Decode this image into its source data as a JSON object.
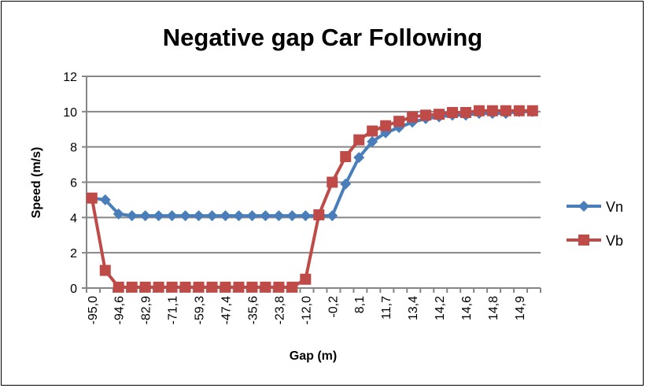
{
  "chart_data": {
    "type": "line",
    "title": "Negative gap Car Following",
    "xlabel": "Gap (m)",
    "ylabel": "Speed (m/s)",
    "ylim": [
      0,
      12
    ],
    "yticks": [
      0,
      2,
      4,
      6,
      8,
      10,
      12
    ],
    "grid": true,
    "legend_position": "right",
    "categories": [
      "-95,0",
      "",
      "-94,6",
      "",
      "-82,9",
      "",
      "-71,1",
      "",
      "-59,3",
      "",
      "-47,4",
      "",
      "-35,6",
      "",
      "-23,8",
      "",
      "-12,0",
      "",
      "-0,2",
      "",
      "8,1",
      "",
      "11,7",
      "",
      "13,4",
      "",
      "14,2",
      "",
      "14,6",
      "",
      "14,8",
      "",
      "14,9",
      ""
    ],
    "series": [
      {
        "name": "Vn",
        "color": "#4a7ebb",
        "marker": "diamond",
        "values": [
          5.1,
          5.0,
          4.2,
          4.1,
          4.1,
          4.1,
          4.1,
          4.1,
          4.1,
          4.1,
          4.1,
          4.1,
          4.1,
          4.1,
          4.1,
          4.1,
          4.1,
          4.1,
          4.1,
          5.9,
          7.4,
          8.3,
          8.8,
          9.1,
          9.4,
          9.6,
          9.7,
          9.8,
          9.8,
          9.9,
          9.9,
          9.9,
          10.0,
          10.0
        ]
      },
      {
        "name": "Vb",
        "color": "#be4b48",
        "marker": "square",
        "values": [
          5.1,
          1.0,
          0.05,
          0.05,
          0.05,
          0.05,
          0.05,
          0.05,
          0.05,
          0.05,
          0.05,
          0.05,
          0.05,
          0.05,
          0.05,
          0.05,
          0.5,
          4.15,
          6.0,
          7.45,
          8.4,
          8.9,
          9.2,
          9.45,
          9.7,
          9.8,
          9.85,
          9.95,
          9.95,
          10.05,
          10.05,
          10.05,
          10.05,
          10.05
        ]
      }
    ]
  }
}
